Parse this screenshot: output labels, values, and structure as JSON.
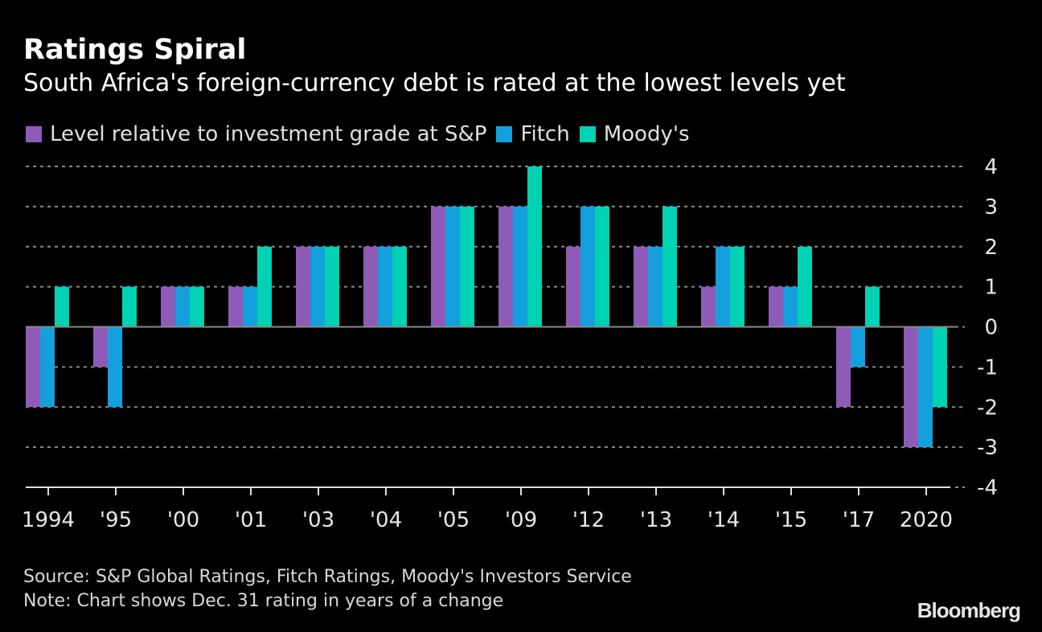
{
  "chart_data": {
    "type": "bar",
    "title": "Ratings Spiral",
    "subtitle": "South Africa's foreign-currency debt is rated at the lowest levels yet",
    "categories": [
      "1994",
      "'95",
      "'00",
      "'01",
      "'03",
      "'04",
      "'05",
      "'09",
      "'12",
      "'13",
      "'14",
      "'15",
      "'17",
      "2020"
    ],
    "series": [
      {
        "name": "Level relative to investment grade at S&P",
        "color": "#8e5bb8",
        "values": [
          -2,
          -1,
          1,
          1,
          2,
          2,
          3,
          3,
          2,
          2,
          1,
          1,
          -2,
          -3
        ]
      },
      {
        "name": "Fitch",
        "color": "#13a0dd",
        "values": [
          -2,
          -2,
          1,
          1,
          2,
          2,
          3,
          3,
          3,
          2,
          2,
          1,
          -1,
          -3
        ]
      },
      {
        "name": "Moody's",
        "color": "#00d2b3",
        "values": [
          1,
          1,
          1,
          2,
          2,
          2,
          3,
          4,
          3,
          3,
          2,
          2,
          1,
          -2
        ]
      }
    ],
    "ylim": [
      -4,
      4
    ],
    "yticks": [
      "4",
      "3",
      "2",
      "1",
      "0",
      "-1",
      "-2",
      "-3",
      "-4"
    ],
    "yaxis_position": "right",
    "grid": true,
    "legend_position": "top-left",
    "source": "Source: S&P Global Ratings, Fitch Ratings, Moody's Investors Service",
    "note": "Note: Chart shows Dec. 31 rating in years of a change"
  },
  "brand": "Bloomberg"
}
